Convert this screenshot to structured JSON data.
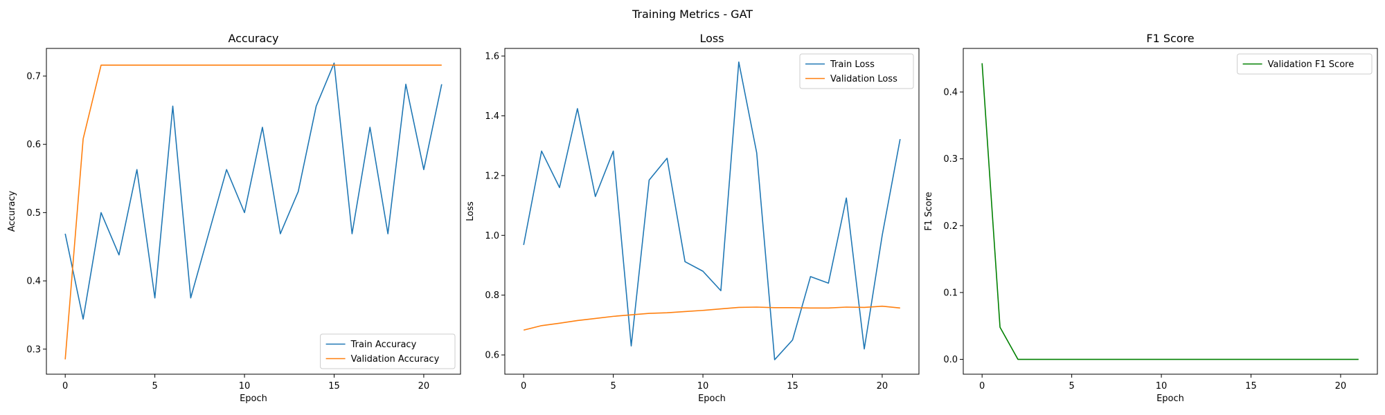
{
  "figure": {
    "suptitle": "Training Metrics - GAT"
  },
  "colors": {
    "blue": "#1f77b4",
    "orange": "#ff7f0e",
    "green": "#008000"
  },
  "chart_data": [
    {
      "type": "line",
      "title": "Accuracy",
      "xlabel": "Epoch",
      "ylabel": "Accuracy",
      "xlim": [
        -1.05,
        22.05
      ],
      "ylim": [
        0.2633,
        0.7405
      ],
      "xticks": [
        0,
        5,
        10,
        15,
        20
      ],
      "yticks": [
        0.3,
        0.4,
        0.5,
        0.6,
        0.7
      ],
      "ytick_labels": [
        "0.3",
        "0.4",
        "0.5",
        "0.6",
        "0.7"
      ],
      "legend_position": "lower-right",
      "x": [
        0,
        1,
        2,
        3,
        4,
        5,
        6,
        7,
        8,
        9,
        10,
        11,
        12,
        13,
        14,
        15,
        16,
        17,
        18,
        19,
        20,
        21
      ],
      "series": [
        {
          "name": "Train Accuracy",
          "color": "#1f77b4",
          "values": [
            0.469,
            0.344,
            0.5,
            0.438,
            0.563,
            0.375,
            0.656,
            0.375,
            0.469,
            0.563,
            0.5,
            0.625,
            0.469,
            0.531,
            0.656,
            0.719,
            0.469,
            0.625,
            0.469,
            0.688,
            0.563,
            0.688
          ]
        },
        {
          "name": "Validation Accuracy",
          "color": "#ff7f0e",
          "values": [
            0.285,
            0.608,
            0.716,
            0.716,
            0.716,
            0.716,
            0.716,
            0.716,
            0.716,
            0.716,
            0.716,
            0.716,
            0.716,
            0.716,
            0.716,
            0.716,
            0.716,
            0.716,
            0.716,
            0.716,
            0.716,
            0.716
          ]
        }
      ]
    },
    {
      "type": "line",
      "title": "Loss",
      "xlabel": "Epoch",
      "ylabel": "Loss",
      "xlim": [
        -1.05,
        22.05
      ],
      "ylim": [
        0.5355,
        1.6255
      ],
      "xticks": [
        0,
        5,
        10,
        15,
        20
      ],
      "yticks": [
        0.6,
        0.8,
        1.0,
        1.2,
        1.4,
        1.6
      ],
      "ytick_labels": [
        "0.6",
        "0.8",
        "1.0",
        "1.2",
        "1.4",
        "1.6"
      ],
      "legend_position": "upper-right",
      "x": [
        0,
        1,
        2,
        3,
        4,
        5,
        6,
        7,
        8,
        9,
        10,
        11,
        12,
        13,
        14,
        15,
        16,
        17,
        18,
        19,
        20,
        21
      ],
      "series": [
        {
          "name": "Train Loss",
          "color": "#1f77b4",
          "values": [
            0.968,
            1.282,
            1.16,
            1.424,
            1.13,
            1.282,
            0.63,
            1.185,
            1.258,
            0.912,
            0.88,
            0.815,
            1.58,
            1.276,
            0.584,
            0.65,
            0.862,
            0.84,
            1.125,
            0.62,
            1.0,
            1.322
          ]
        },
        {
          "name": "Validation Loss",
          "color": "#ff7f0e",
          "values": [
            0.683,
            0.698,
            0.706,
            0.715,
            0.722,
            0.729,
            0.734,
            0.739,
            0.741,
            0.745,
            0.749,
            0.754,
            0.759,
            0.76,
            0.758,
            0.758,
            0.757,
            0.757,
            0.76,
            0.759,
            0.763,
            0.757
          ]
        }
      ]
    },
    {
      "type": "line",
      "title": "F1 Score",
      "xlabel": "Epoch",
      "ylabel": "F1 Score",
      "xlim": [
        -1.05,
        22.05
      ],
      "ylim": [
        -0.0222,
        0.4652
      ],
      "xticks": [
        0,
        5,
        10,
        15,
        20
      ],
      "yticks": [
        0.0,
        0.1,
        0.2,
        0.3,
        0.4
      ],
      "ytick_labels": [
        "0.0",
        "0.1",
        "0.2",
        "0.3",
        "0.4"
      ],
      "legend_position": "upper-right",
      "x": [
        0,
        1,
        2,
        3,
        4,
        5,
        6,
        7,
        8,
        9,
        10,
        11,
        12,
        13,
        14,
        15,
        16,
        17,
        18,
        19,
        20,
        21
      ],
      "series": [
        {
          "name": "Validation F1 Score",
          "color": "#008000",
          "values": [
            0.443,
            0.048,
            0,
            0,
            0,
            0,
            0,
            0,
            0,
            0,
            0,
            0,
            0,
            0,
            0,
            0,
            0,
            0,
            0,
            0,
            0,
            0
          ]
        }
      ]
    }
  ]
}
